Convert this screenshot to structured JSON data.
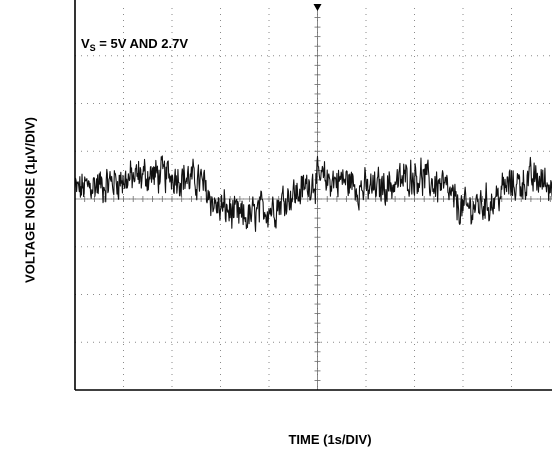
{
  "chart_data": {
    "type": "line",
    "title": "",
    "xlabel": "TIME (1s/DIV)",
    "ylabel": "VOLTAGE NOISE (1µV/DIV)",
    "annotation": {
      "main": "V",
      "sub": "S",
      "rest": " = 5V AND 2.7V"
    },
    "x_unit": "s",
    "y_unit": "µV",
    "x_divisions": 10,
    "y_divisions": 8,
    "xlim": [
      0,
      10
    ],
    "ylim": [
      -4,
      4
    ],
    "grid": true,
    "grid_style": "dotted",
    "colors": {
      "trace": "#111111",
      "frame": "#000000",
      "grid": "#8a8a8a",
      "background": "#ffffff"
    },
    "series": [
      {
        "x": [
          0,
          0.5,
          1,
          1.5,
          2,
          2.5,
          3,
          3.5,
          4,
          4.5,
          5,
          5.5,
          6,
          6.5,
          7,
          7.5,
          8,
          8.5,
          9,
          9.5,
          10
        ],
        "y": [
          0.2,
          0.3,
          0.4,
          0.5,
          0.5,
          0.4,
          -0.2,
          -0.4,
          -0.2,
          0.1,
          0.4,
          0.4,
          0.2,
          0.3,
          0.5,
          0.3,
          -0.2,
          -0.1,
          0.3,
          0.4,
          0.2
        ]
      }
    ]
  }
}
